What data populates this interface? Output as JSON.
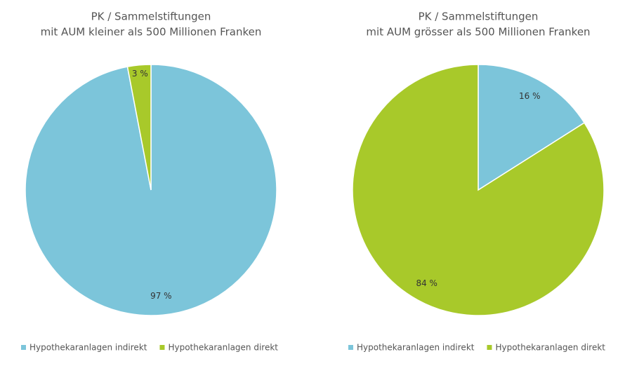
{
  "chart_data": [
    {
      "type": "pie",
      "title": "PK / Sammelstiftungen",
      "subtitle": "mit AUM kleiner als 500 Millionen Franken",
      "categories": [
        "Hypothekaranlagen indirekt",
        "Hypothekaranlagen direkt"
      ],
      "values": [
        97,
        3
      ],
      "value_labels": [
        "97 %",
        "3 %"
      ],
      "colors": [
        "#7cc5da",
        "#a8c92a"
      ]
    },
    {
      "type": "pie",
      "title": "PK / Sammelstiftungen",
      "subtitle": "mit AUM grösser als 500 Millionen Franken",
      "categories": [
        "Hypothekaranlagen indirekt",
        "Hypothekaranlagen direkt"
      ],
      "values": [
        16,
        84
      ],
      "value_labels": [
        "16 %",
        "84 %"
      ],
      "colors": [
        "#7cc5da",
        "#a8c92a"
      ]
    }
  ]
}
